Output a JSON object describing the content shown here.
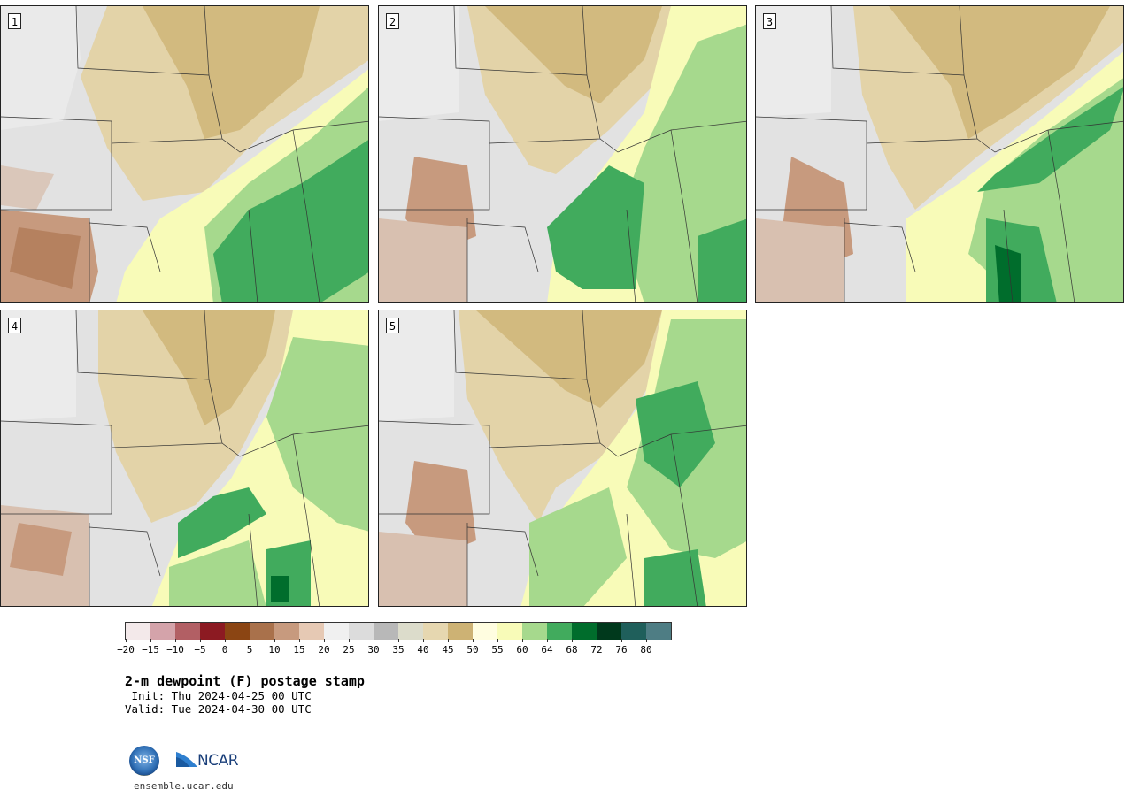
{
  "panels": [
    {
      "label": "1"
    },
    {
      "label": "2"
    },
    {
      "label": "3"
    },
    {
      "label": "4"
    },
    {
      "label": "5"
    }
  ],
  "colorbar": {
    "colors": [
      "#f3e9ea",
      "#d4a3aa",
      "#b25f64",
      "#8c1a22",
      "#8b4513",
      "#a9714b",
      "#c79a7e",
      "#e6c9b4",
      "#f0f0f0",
      "#dcdcdc",
      "#b8b8b8",
      "#dcdccb",
      "#e6d7b0",
      "#cdb274",
      "#fffde0",
      "#f8fbb8",
      "#a6d98d",
      "#41ab5d",
      "#006d2c",
      "#00391c",
      "#1f5f5b",
      "#4e7d84"
    ],
    "ticks": [
      "−20",
      "−15",
      "−10",
      "−5",
      "0",
      "5",
      "10",
      "15",
      "20",
      "25",
      "30",
      "35",
      "40",
      "45",
      "50",
      "55",
      "60",
      "64",
      "68",
      "72",
      "76",
      "80"
    ]
  },
  "title": "2-m dewpoint (F) postage stamp",
  "init": " Init: Thu 2024-04-25 00 UTC",
  "valid": "Valid: Tue 2024-04-30 00 UTC",
  "logos": {
    "nsf": "NSF",
    "ncar": "NCAR"
  },
  "website": "ensemble.ucar.edu"
}
